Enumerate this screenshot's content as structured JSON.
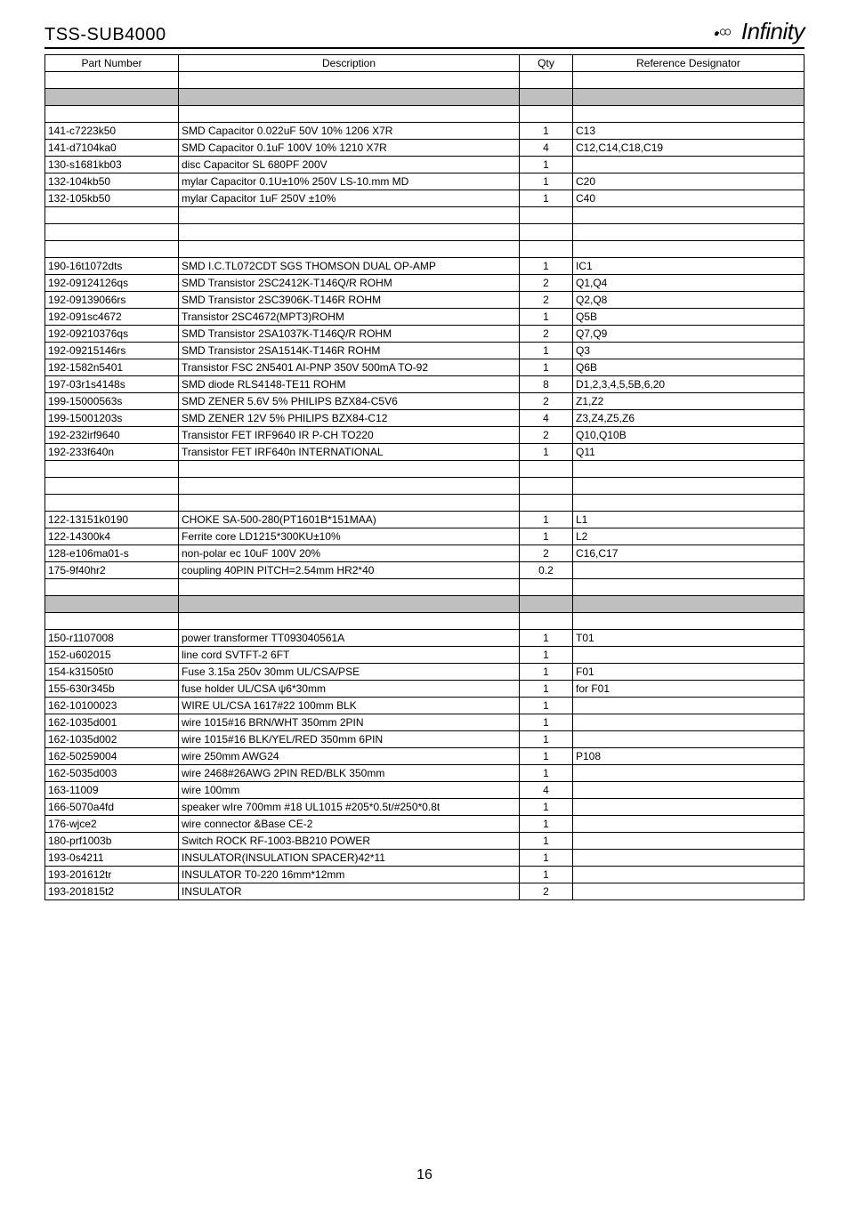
{
  "header": {
    "model": "TSS-SUB4000",
    "brand": "Infinity"
  },
  "page_number": "16",
  "table": {
    "columns": [
      "Part Number",
      "Description",
      "Qty",
      "Reference Designator"
    ],
    "col_align": [
      "left",
      "center",
      "center",
      "center"
    ],
    "shaded_bg": "#bfbfbf",
    "rows": [
      {
        "shaded": false,
        "pn": "",
        "desc": "",
        "qty": "",
        "ref": ""
      },
      {
        "shaded": true,
        "pn": "",
        "desc": "",
        "qty": "",
        "ref": ""
      },
      {
        "shaded": false,
        "pn": "",
        "desc": "",
        "qty": "",
        "ref": ""
      },
      {
        "shaded": false,
        "pn": "141-c7223k50",
        "desc": "SMD Capacitor 0.022uF 50V 10% 1206 X7R",
        "qty": "1",
        "ref": "C13"
      },
      {
        "shaded": false,
        "pn": "141-d7104ka0",
        "desc": "SMD Capacitor 0.1uF 100V 10% 1210 X7R",
        "qty": "4",
        "ref": "C12,C14,C18,C19"
      },
      {
        "shaded": false,
        "pn": "130-s1681kb03",
        "desc": "disc Capacitor SL 680PF 200V",
        "qty": "1",
        "ref": ""
      },
      {
        "shaded": false,
        "pn": "132-104kb50",
        "desc": "mylar Capacitor 0.1U±10% 250V LS-10.mm MD",
        "qty": "1",
        "ref": "C20"
      },
      {
        "shaded": false,
        "pn": "132-105kb50",
        "desc": "mylar Capacitor 1uF 250V ±10%",
        "qty": "1",
        "ref": "C40"
      },
      {
        "shaded": false,
        "pn": "",
        "desc": "",
        "qty": "",
        "ref": ""
      },
      {
        "shaded": false,
        "pn": "",
        "desc": "",
        "qty": "",
        "ref": ""
      },
      {
        "shaded": false,
        "pn": "",
        "desc": "",
        "qty": "",
        "ref": ""
      },
      {
        "shaded": false,
        "pn": "190-16t1072dts",
        "desc": "SMD I.C.TL072CDT SGS THOMSON DUAL OP-AMP",
        "qty": "1",
        "ref": "IC1"
      },
      {
        "shaded": false,
        "pn": "192-09124126qs",
        "desc": "SMD Transistor 2SC2412K-T146Q/R ROHM",
        "qty": "2",
        "ref": "Q1,Q4"
      },
      {
        "shaded": false,
        "pn": "192-09139066rs",
        "desc": "SMD Transistor 2SC3906K-T146R ROHM",
        "qty": "2",
        "ref": "Q2,Q8"
      },
      {
        "shaded": false,
        "pn": "192-091sc4672",
        "desc": "Transistor 2SC4672(MPT3)ROHM",
        "qty": "1",
        "ref": "Q5B"
      },
      {
        "shaded": false,
        "pn": "192-09210376qs",
        "desc": "SMD Transistor 2SA1037K-T146Q/R ROHM",
        "qty": "2",
        "ref": "Q7,Q9"
      },
      {
        "shaded": false,
        "pn": "192-09215146rs",
        "desc": "SMD Transistor 2SA1514K-T146R ROHM",
        "qty": "1",
        "ref": "Q3"
      },
      {
        "shaded": false,
        "pn": "192-1582n5401",
        "desc": "Transistor FSC 2N5401 AI-PNP 350V 500mA TO-92",
        "qty": "1",
        "ref": "Q6B"
      },
      {
        "shaded": false,
        "pn": "197-03r1s4148s",
        "desc": "SMD diode RLS4148-TE11 ROHM",
        "qty": "8",
        "ref": "D1,2,3,4,5,5B,6,20"
      },
      {
        "shaded": false,
        "pn": "199-15000563s",
        "desc": "SMD ZENER 5.6V 5% PHILIPS BZX84-C5V6",
        "qty": "2",
        "ref": "Z1,Z2"
      },
      {
        "shaded": false,
        "pn": "199-15001203s",
        "desc": "SMD ZENER 12V 5% PHILIPS BZX84-C12",
        "qty": "4",
        "ref": "Z3,Z4,Z5,Z6"
      },
      {
        "shaded": false,
        "pn": "192-232irf9640",
        "desc": "Transistor  FET IRF9640 IR P-CH TO220",
        "qty": "2",
        "ref": "Q10,Q10B"
      },
      {
        "shaded": false,
        "pn": "192-233f640n",
        "desc": "Transistor  FET IRF640n  INTERNATIONAL",
        "qty": "1",
        "ref": "Q11"
      },
      {
        "shaded": false,
        "pn": "",
        "desc": "",
        "qty": "",
        "ref": ""
      },
      {
        "shaded": false,
        "pn": "",
        "desc": "",
        "qty": "",
        "ref": ""
      },
      {
        "shaded": false,
        "pn": "",
        "desc": "",
        "qty": "",
        "ref": ""
      },
      {
        "shaded": false,
        "pn": "122-13151k0190",
        "desc": "CHOKE SA-500-280(PT1601B*151MAA)",
        "qty": "1",
        "ref": "L1"
      },
      {
        "shaded": false,
        "pn": "122-14300k4",
        "desc": "Ferrite core LD1215*300KU±10%",
        "qty": "1",
        "ref": "L2"
      },
      {
        "shaded": false,
        "pn": "128-e106ma01-s",
        "desc": "non-polar ec 10uF 100V 20%",
        "qty": "2",
        "ref": "C16,C17"
      },
      {
        "shaded": false,
        "pn": "175-9f40hr2",
        "desc": "coupling 40PIN PITCH=2.54mm HR2*40",
        "qty": "0.2",
        "ref": ""
      },
      {
        "shaded": false,
        "pn": "",
        "desc": "",
        "qty": "",
        "ref": ""
      },
      {
        "shaded": true,
        "pn": "",
        "desc": "",
        "qty": "",
        "ref": ""
      },
      {
        "shaded": false,
        "pn": "",
        "desc": "",
        "qty": "",
        "ref": ""
      },
      {
        "shaded": false,
        "pn": "150-r1107008",
        "desc": "power transformer TT093040561A",
        "qty": "1",
        "ref": "T01"
      },
      {
        "shaded": false,
        "pn": "152-u602015",
        "desc": "line cord  SVTFT-2 6FT",
        "qty": "1",
        "ref": ""
      },
      {
        "shaded": false,
        "pn": "154-k31505t0",
        "desc": "Fuse 3.15a 250v  30mm UL/CSA/PSE",
        "qty": "1",
        "ref": "F01"
      },
      {
        "shaded": false,
        "pn": "155-630r345b",
        "desc": "fuse holder UL/CSA ψ6*30mm",
        "qty": "1",
        "ref": "for F01"
      },
      {
        "shaded": false,
        "pn": "162-10100023",
        "desc": "WIRE UL/CSA 1617#22 100mm BLK",
        "qty": "1",
        "ref": ""
      },
      {
        "shaded": false,
        "pn": "162-1035d001",
        "desc": "wire 1015#16 BRN/WHT 350mm 2PIN",
        "qty": "1",
        "ref": ""
      },
      {
        "shaded": false,
        "pn": "162-1035d002",
        "desc": "wire 1015#16 BLK/YEL/RED 350mm 6PIN",
        "qty": "1",
        "ref": ""
      },
      {
        "shaded": false,
        "pn": "162-50259004",
        "desc": "wire 250mm AWG24",
        "qty": "1",
        "ref": "P108"
      },
      {
        "shaded": false,
        "pn": "162-5035d003",
        "desc": "wire 2468#26AWG 2PIN RED/BLK 350mm",
        "qty": "1",
        "ref": ""
      },
      {
        "shaded": false,
        "pn": "163-11009",
        "desc": "wire 100mm",
        "qty": "4",
        "ref": ""
      },
      {
        "shaded": false,
        "pn": "166-5070a4fd",
        "desc": "speaker wIre 700mm #18 UL1015 #205*0.5t/#250*0.8t",
        "qty": "1",
        "ref": ""
      },
      {
        "shaded": false,
        "pn": "176-wjce2",
        "desc": "wire connector &Base  CE-2",
        "qty": "1",
        "ref": ""
      },
      {
        "shaded": false,
        "pn": "180-prf1003b",
        "desc": "Switch  ROCK RF-1003-BB210    POWER",
        "qty": "1",
        "ref": ""
      },
      {
        "shaded": false,
        "pn": "193-0s4211",
        "desc": "INSULATOR(INSULATION SPACER)42*11",
        "qty": "1",
        "ref": ""
      },
      {
        "shaded": false,
        "pn": "193-201612tr",
        "desc": "INSULATOR T0-220 16mm*12mm",
        "qty": "1",
        "ref": ""
      },
      {
        "shaded": false,
        "pn": "193-201815t2",
        "desc": "INSULATOR",
        "qty": "2",
        "ref": ""
      }
    ]
  }
}
